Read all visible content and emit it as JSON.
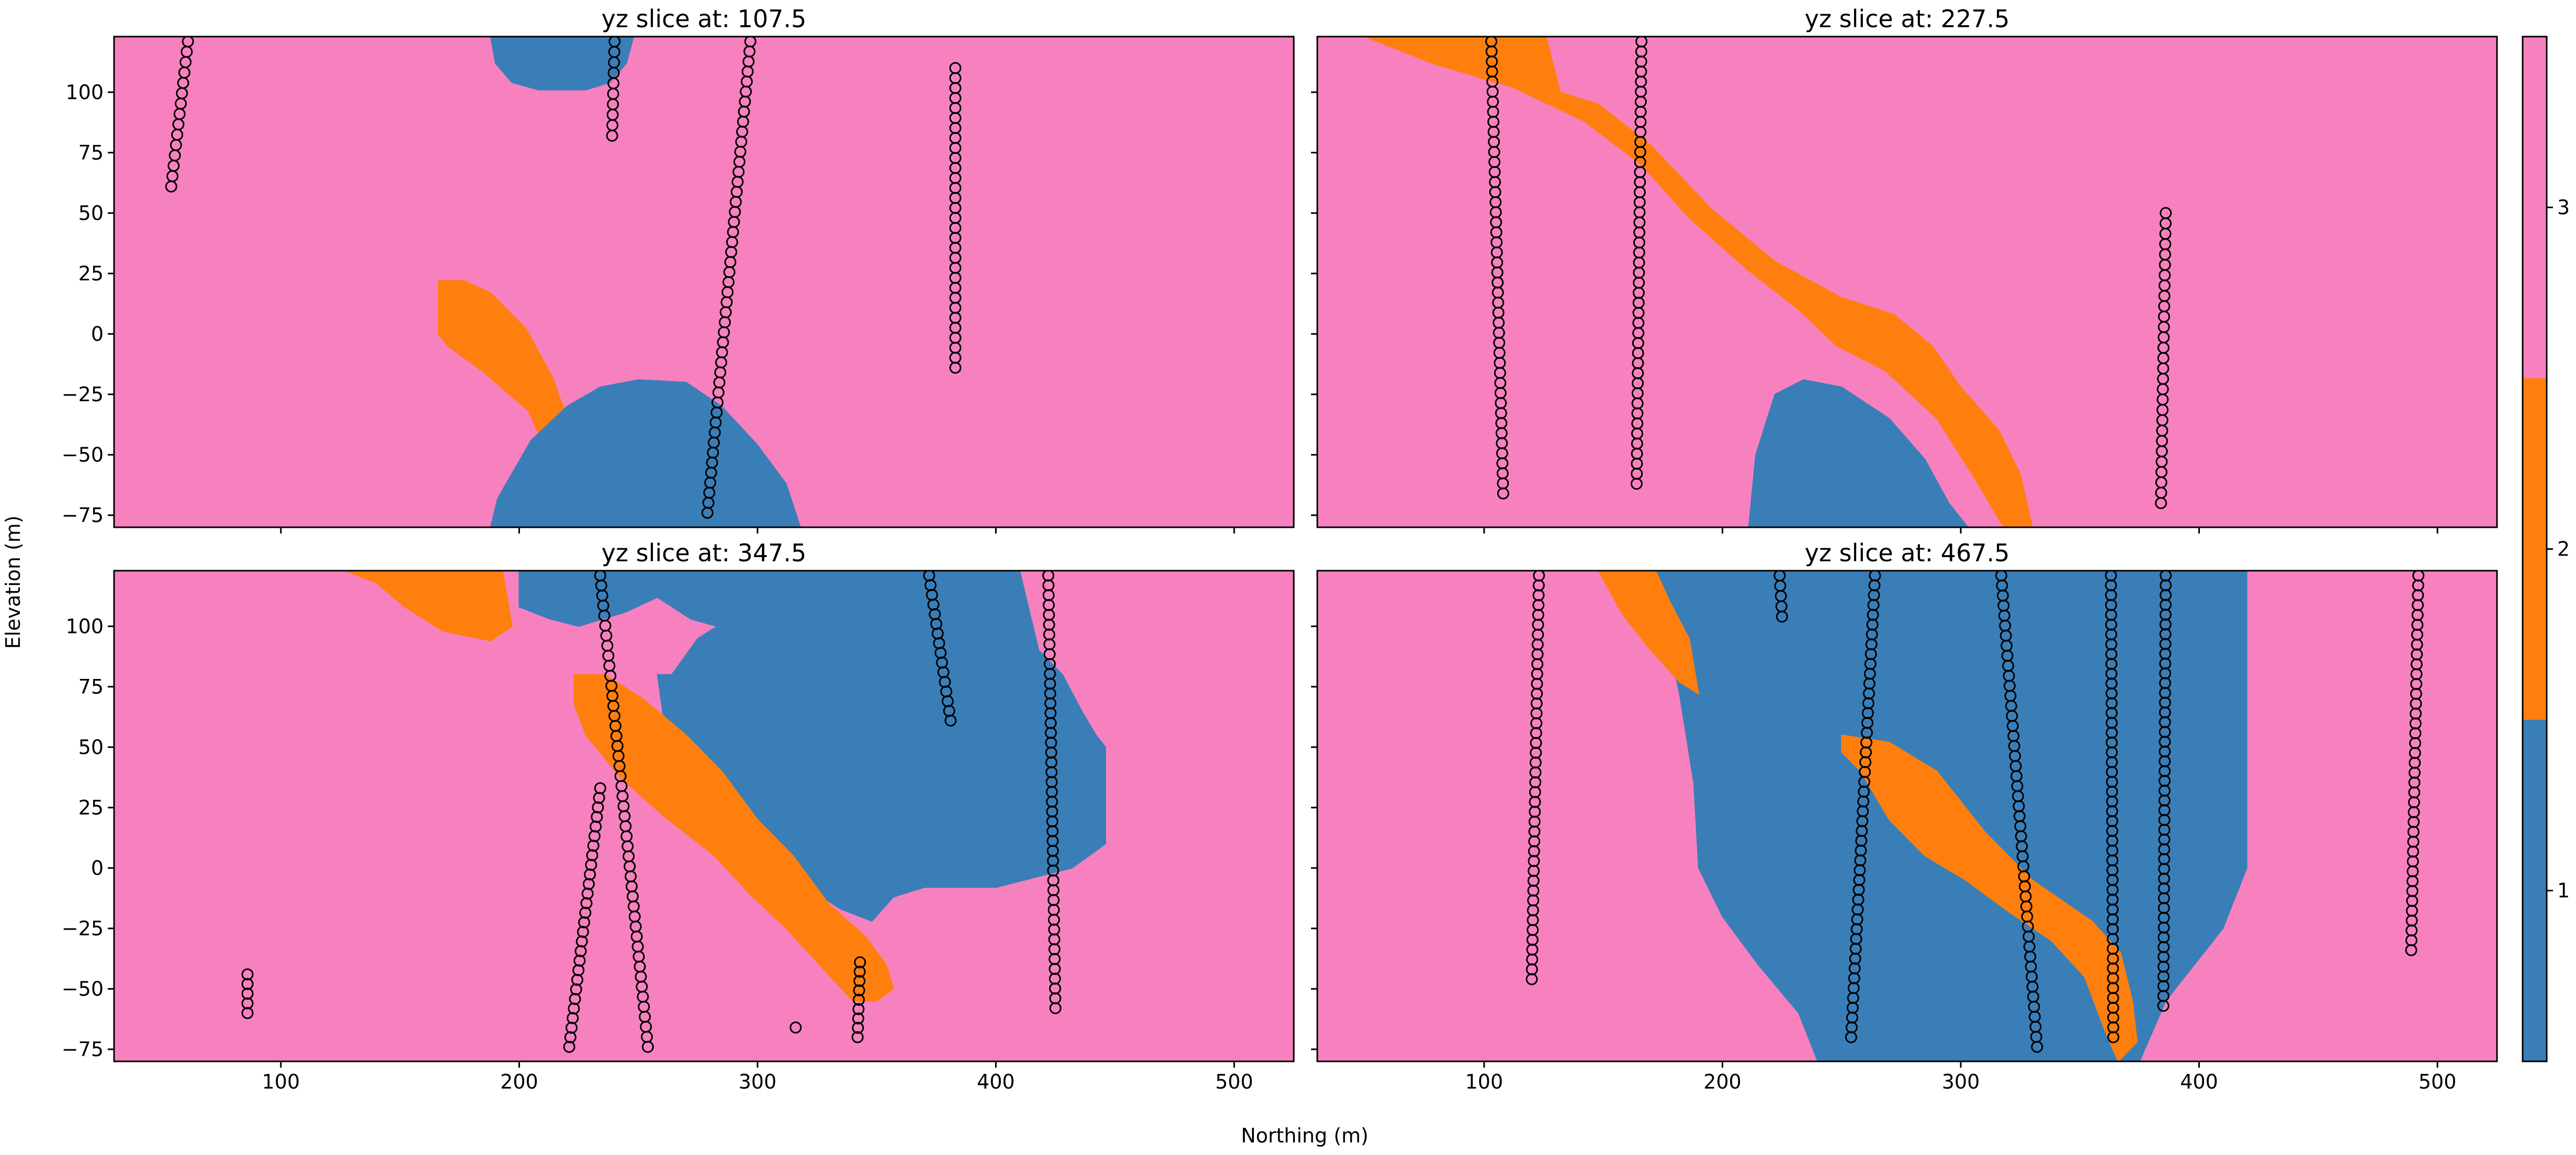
{
  "figure": {
    "ylabel": "Elevation (m)",
    "xlabel": "Northing (m)"
  },
  "colors": {
    "unit_1": "#3a7eb8",
    "unit_2": "#ff7f0e",
    "unit_3": "#f781bf",
    "marker_edge": "#000000"
  },
  "chart_data": [
    {
      "type": "heatmap",
      "title": "yz slice at: 107.5",
      "xlim": [
        30,
        525
      ],
      "ylim": [
        -80,
        123
      ],
      "xticks": [
        "100",
        "200",
        "300",
        "400",
        "500"
      ],
      "show_xtick_labels": false,
      "yticks": [
        "100",
        "75",
        "50",
        "25",
        "0",
        "−25",
        "−50",
        "−75"
      ],
      "show_ytick_labels": true,
      "background_unit": 3,
      "regions": [
        {
          "unit": 1,
          "points": [
            [
              248,
              123
            ],
            [
              188,
              123
            ],
            [
              190,
              112
            ],
            [
              197,
              104
            ],
            [
              208,
              101
            ],
            [
              228,
              101
            ],
            [
              238,
              104
            ],
            [
              245,
              112
            ]
          ]
        },
        {
          "unit": 2,
          "points": [
            [
              166,
              22
            ],
            [
              177,
              22
            ],
            [
              188,
              17
            ],
            [
              203,
              2
            ],
            [
              214,
              -18
            ],
            [
              222,
              -40
            ],
            [
              220,
              -48
            ],
            [
              212,
              -50
            ],
            [
              204,
              -32
            ],
            [
              184,
              -15
            ],
            [
              170,
              -5
            ],
            [
              166,
              0
            ]
          ]
        },
        {
          "unit": 1,
          "points": [
            [
              188,
              -80
            ],
            [
              191,
              -68
            ],
            [
              205,
              -44
            ],
            [
              220,
              -30
            ],
            [
              234,
              -22
            ],
            [
              250,
              -19
            ],
            [
              270,
              -20
            ],
            [
              285,
              -30
            ],
            [
              300,
              -46
            ],
            [
              312,
              -62
            ],
            [
              318,
              -80
            ]
          ]
        }
      ],
      "drillholes": [
        {
          "x0": 54,
          "y0": 61,
          "x1": 61,
          "y1": 121,
          "n": 15
        },
        {
          "x0": 239,
          "y0": 82,
          "x1": 240,
          "y1": 121,
          "n": 10
        },
        {
          "x0": 279,
          "y0": -74,
          "x1": 297,
          "y1": 121,
          "n": 48
        },
        {
          "x0": 383,
          "y0": -14,
          "x1": 383,
          "y1": 110,
          "n": 31
        }
      ]
    },
    {
      "type": "heatmap",
      "title": "yz slice at: 227.5",
      "xlim": [
        30,
        525
      ],
      "ylim": [
        -80,
        123
      ],
      "xticks": [
        "100",
        "200",
        "300",
        "400",
        "500"
      ],
      "show_xtick_labels": false,
      "yticks": [
        "100",
        "75",
        "50",
        "25",
        "0",
        "−25",
        "−50",
        "−75"
      ],
      "show_ytick_labels": false,
      "background_unit": 3,
      "regions": [
        {
          "unit": 2,
          "points": [
            [
              50,
              123
            ],
            [
              126,
              123
            ],
            [
              132,
              100
            ],
            [
              148,
              95
            ],
            [
              170,
              78
            ],
            [
              195,
              52
            ],
            [
              222,
              30
            ],
            [
              250,
              15
            ],
            [
              272,
              8
            ],
            [
              288,
              -5
            ],
            [
              300,
              -22
            ],
            [
              316,
              -40
            ],
            [
              325,
              -58
            ],
            [
              330,
              -80
            ],
            [
              318,
              -80
            ],
            [
              306,
              -60
            ],
            [
              290,
              -35
            ],
            [
              268,
              -15
            ],
            [
              248,
              -5
            ],
            [
              232,
              10
            ],
            [
              210,
              27
            ],
            [
              186,
              48
            ],
            [
              166,
              70
            ],
            [
              142,
              88
            ],
            [
              112,
              102
            ],
            [
              78,
              112
            ]
          ]
        },
        {
          "unit": 1,
          "points": [
            [
              211,
              -80
            ],
            [
              214,
              -50
            ],
            [
              222,
              -25
            ],
            [
              234,
              -19
            ],
            [
              250,
              -22
            ],
            [
              270,
              -35
            ],
            [
              285,
              -52
            ],
            [
              295,
              -70
            ],
            [
              303,
              -80
            ]
          ]
        }
      ],
      "drillholes": [
        {
          "x0": 103,
          "y0": 121,
          "x1": 108,
          "y1": -66,
          "n": 46
        },
        {
          "x0": 166,
          "y0": 121,
          "x1": 164,
          "y1": -62,
          "n": 45
        },
        {
          "x0": 386,
          "y0": 50,
          "x1": 384,
          "y1": -70,
          "n": 29
        }
      ]
    },
    {
      "type": "heatmap",
      "title": "yz slice at: 347.5",
      "xlim": [
        30,
        525
      ],
      "ylim": [
        -80,
        123
      ],
      "xticks": [
        "100",
        "200",
        "300",
        "400",
        "500"
      ],
      "show_xtick_labels": true,
      "yticks": [
        "100",
        "75",
        "50",
        "25",
        "0",
        "−25",
        "−50",
        "−75"
      ],
      "show_ytick_labels": true,
      "background_unit": 3,
      "regions": [
        {
          "unit": 2,
          "points": [
            [
              127,
              123
            ],
            [
              193,
              123
            ],
            [
              197,
              100
            ],
            [
              188,
              94
            ],
            [
              168,
              98
            ],
            [
              152,
              108
            ],
            [
              140,
              118
            ]
          ]
        },
        {
          "unit": 1,
          "points": [
            [
              200,
              123
            ],
            [
              410,
              123
            ],
            [
              418,
              90
            ],
            [
              428,
              80
            ],
            [
              436,
              65
            ],
            [
              442,
              55
            ],
            [
              446,
              50
            ],
            [
              446,
              10
            ],
            [
              432,
              0
            ],
            [
              400,
              -8
            ],
            [
              370,
              -8
            ],
            [
              357,
              -12
            ],
            [
              348,
              -22
            ],
            [
              335,
              -17
            ],
            [
              316,
              -5
            ],
            [
              298,
              8
            ],
            [
              282,
              20
            ],
            [
              267,
              32
            ],
            [
              263,
              45
            ],
            [
              258,
              80
            ],
            [
              264,
              80
            ],
            [
              275,
              95
            ],
            [
              288,
              103
            ],
            [
              290,
              98
            ],
            [
              272,
              103
            ],
            [
              258,
              112
            ],
            [
              245,
              106
            ],
            [
              225,
              100
            ],
            [
              213,
              103
            ],
            [
              200,
              108
            ]
          ]
        },
        {
          "unit": 2,
          "points": [
            [
              223,
              80
            ],
            [
              236,
              80
            ],
            [
              252,
              70
            ],
            [
              270,
              55
            ],
            [
              285,
              40
            ],
            [
              300,
              20
            ],
            [
              315,
              5
            ],
            [
              330,
              -15
            ],
            [
              345,
              -28
            ],
            [
              354,
              -40
            ],
            [
              357,
              -50
            ],
            [
              350,
              -55
            ],
            [
              340,
              -55
            ],
            [
              326,
              -40
            ],
            [
              312,
              -25
            ],
            [
              296,
              -10
            ],
            [
              282,
              5
            ],
            [
              260,
              22
            ],
            [
              242,
              38
            ],
            [
              228,
              55
            ],
            [
              223,
              68
            ]
          ]
        }
      ],
      "drillholes": [
        {
          "x0": 86,
          "y0": -44,
          "x1": 86,
          "y1": -60,
          "n": 5
        },
        {
          "x0": 234,
          "y0": 121,
          "x1": 254,
          "y1": -74,
          "n": 48
        },
        {
          "x0": 234,
          "y0": 33,
          "x1": 221,
          "y1": -74,
          "n": 28
        },
        {
          "x0": 372,
          "y0": 121,
          "x1": 381,
          "y1": 61,
          "n": 16
        },
        {
          "x0": 422,
          "y0": 121,
          "x1": 425,
          "y1": -58,
          "n": 45
        },
        {
          "x0": 343,
          "y0": -39,
          "x1": 342,
          "y1": -70,
          "n": 9
        },
        {
          "x0": 316,
          "y0": -66,
          "x1": 316,
          "y1": -66,
          "n": 1
        }
      ]
    },
    {
      "type": "heatmap",
      "title": "yz slice at: 467.5",
      "xlim": [
        30,
        525
      ],
      "ylim": [
        -80,
        123
      ],
      "xticks": [
        "100",
        "200",
        "300",
        "400",
        "500"
      ],
      "show_xtick_labels": true,
      "yticks": [
        "100",
        "75",
        "50",
        "25",
        "0",
        "−25",
        "−50",
        "−75"
      ],
      "show_ytick_labels": false,
      "background_unit": 3,
      "regions": [
        {
          "unit": 1,
          "points": [
            [
              172,
              123
            ],
            [
              420,
              123
            ],
            [
              420,
              0
            ],
            [
              410,
              -25
            ],
            [
              398,
              -40
            ],
            [
              386,
              -55
            ],
            [
              375,
              -80
            ],
            [
              240,
              -80
            ],
            [
              232,
              -60
            ],
            [
              215,
              -40
            ],
            [
              200,
              -20
            ],
            [
              190,
              0
            ],
            [
              188,
              35
            ],
            [
              182,
              72
            ],
            [
              176,
              100
            ]
          ]
        },
        {
          "unit": 2,
          "points": [
            [
              148,
              123
            ],
            [
              172,
              123
            ],
            [
              178,
              110
            ],
            [
              186,
              95
            ],
            [
              190,
              72
            ],
            [
              182,
              77
            ],
            [
              170,
              90
            ],
            [
              158,
              105
            ]
          ]
        },
        {
          "unit": 2,
          "points": [
            [
              250,
              55
            ],
            [
              270,
              52
            ],
            [
              290,
              40
            ],
            [
              310,
              15
            ],
            [
              330,
              -5
            ],
            [
              355,
              -22
            ],
            [
              367,
              -35
            ],
            [
              372,
              -55
            ],
            [
              374,
              -72
            ],
            [
              366,
              -80
            ],
            [
              360,
              -66
            ],
            [
              352,
              -45
            ],
            [
              338,
              -30
            ],
            [
              320,
              -18
            ],
            [
              302,
              -5
            ],
            [
              285,
              5
            ],
            [
              270,
              20
            ],
            [
              258,
              40
            ],
            [
              250,
              48
            ]
          ]
        }
      ],
      "drillholes": [
        {
          "x0": 123,
          "y0": 121,
          "x1": 120,
          "y1": -46,
          "n": 42
        },
        {
          "x0": 224,
          "y0": 121,
          "x1": 225,
          "y1": 104,
          "n": 5
        },
        {
          "x0": 264,
          "y0": 121,
          "x1": 254,
          "y1": -70,
          "n": 48
        },
        {
          "x0": 317,
          "y0": 121,
          "x1": 332,
          "y1": -74,
          "n": 48
        },
        {
          "x0": 363,
          "y0": 121,
          "x1": 364,
          "y1": -70,
          "n": 48
        },
        {
          "x0": 386,
          "y0": 121,
          "x1": 385,
          "y1": -57,
          "n": 45
        },
        {
          "x0": 492,
          "y0": 121,
          "x1": 489,
          "y1": -34,
          "n": 39
        }
      ]
    }
  ],
  "colorbar": {
    "ticks": [
      {
        "value": 1,
        "label": "1"
      },
      {
        "value": 2,
        "label": "2"
      },
      {
        "value": 3,
        "label": "3"
      }
    ],
    "range": [
      0.5,
      3.5
    ]
  }
}
